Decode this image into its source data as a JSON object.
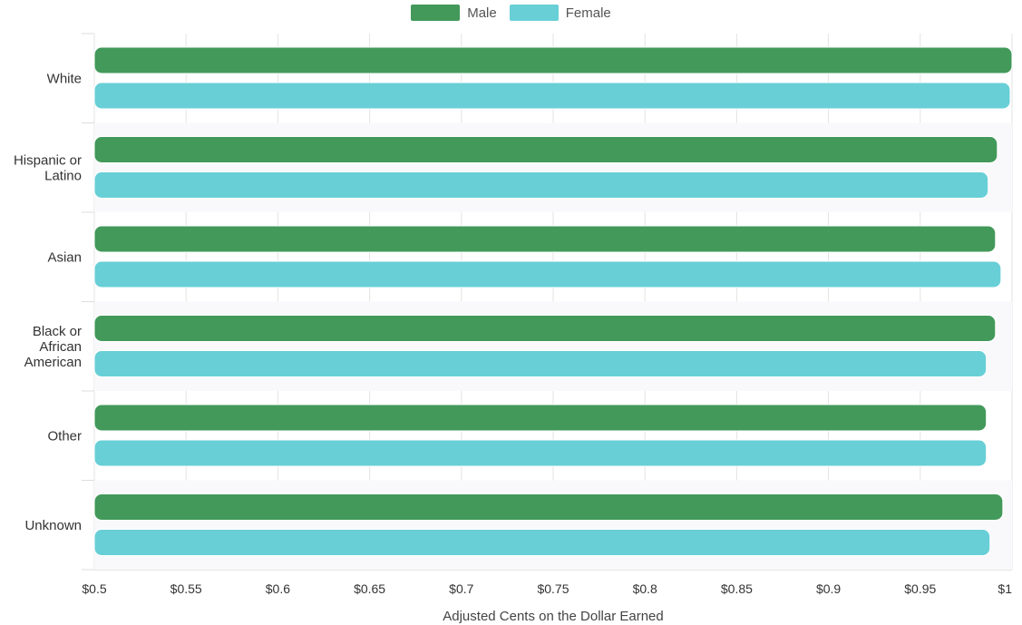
{
  "chart_data": {
    "type": "bar",
    "orientation": "horizontal",
    "categories": [
      [
        "White"
      ],
      [
        "Hispanic or",
        "Latino"
      ],
      [
        "Asian"
      ],
      [
        "Black or",
        "African",
        "American"
      ],
      [
        "Other"
      ],
      [
        "Unknown"
      ]
    ],
    "series": [
      {
        "name": "Male",
        "color": "#42995a",
        "values": [
          1.0,
          0.992,
          0.991,
          0.991,
          0.986,
          0.995
        ]
      },
      {
        "name": "Female",
        "color": "#68cfd6",
        "values": [
          0.999,
          0.987,
          0.994,
          0.986,
          0.986,
          0.988
        ]
      }
    ],
    "xlabel": "Adjusted Cents on the Dollar Earned",
    "xlim": [
      0.5,
      1.0
    ],
    "xticks": [
      "$0.5",
      "$0.55",
      "$0.6",
      "$0.65",
      "$0.7",
      "$0.75",
      "$0.8",
      "$0.85",
      "$0.9",
      "$0.95",
      "$1"
    ],
    "grid": true,
    "legend_position": "top-center"
  }
}
